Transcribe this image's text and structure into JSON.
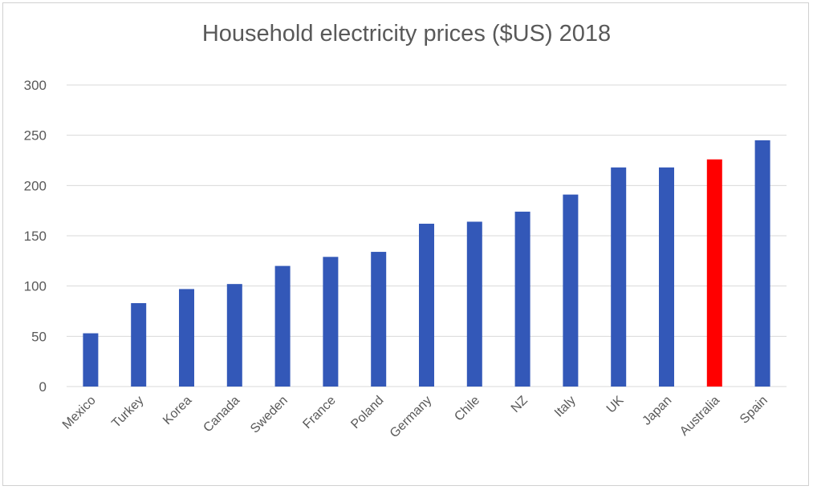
{
  "chart_data": {
    "type": "bar",
    "title": "Household electricity prices ($US) 2018",
    "xlabel": "",
    "ylabel": "",
    "categories": [
      "Mexico",
      "Turkey",
      "Korea",
      "Canada",
      "Sweden",
      "France",
      "Poland",
      "Germany",
      "Chile",
      "NZ",
      "Italy",
      "UK",
      "Japan",
      "Australia",
      "Spain"
    ],
    "values": [
      53,
      83,
      97,
      102,
      120,
      129,
      134,
      162,
      164,
      174,
      191,
      218,
      218,
      226,
      245
    ],
    "ylim": [
      0,
      300
    ],
    "yticks": [
      0,
      50,
      100,
      150,
      200,
      250,
      300
    ],
    "grid": true,
    "legend": "none",
    "bar_color": "#3358b8",
    "highlight_color": "#ff0000",
    "highlight_category": "Australia",
    "gridline_color": "#d9d9d9"
  }
}
